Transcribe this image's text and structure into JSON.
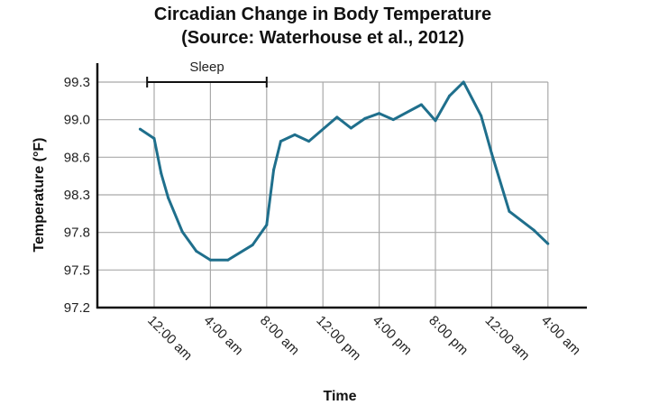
{
  "chart_data": {
    "type": "line",
    "title": "Circadian Change in Body Temperature",
    "subtitle": "(Source: Waterhouse et al., 2012)",
    "xlabel": "Time",
    "ylabel": "Temperature (°F)",
    "x_ticks": [
      "12:00 am",
      "4:00 am",
      "8:00 am",
      "12:00 pm",
      "4:00 pm",
      "8:00 pm",
      "12:00 am",
      "4:00 am"
    ],
    "y_ticks": [
      97.2,
      97.5,
      97.8,
      98.3,
      98.6,
      99.0,
      99.3
    ],
    "y_tick_labels": [
      "97.2",
      "97.5",
      "97.8",
      "98.3",
      "98.6",
      "99.0",
      "99.3"
    ],
    "grid": true,
    "line_color": "#1f6f8c",
    "annotation": {
      "label": "Sleep",
      "from": "11:30 pm",
      "to": "8:00 am"
    },
    "series": [
      {
        "x": [
          "11:00 pm",
          "12:00 am",
          "12:30 am",
          "1:00 am",
          "2:00 am",
          "3:00 am",
          "4:00 am",
          "5:15 am",
          "7:00 am",
          "8:00 am",
          "8:30 am",
          "9:00 am",
          "10:00 am",
          "11:00 am",
          "1:00 pm",
          "2:00 pm",
          "3:00 pm",
          "4:00 pm",
          "5:00 pm",
          "7:00 pm",
          "8:00 pm",
          "9:00 pm",
          "10:00 pm",
          "11:15 pm",
          "12:00 am",
          "1:15 am",
          "3:00 am",
          "4:00 am"
        ],
        "values": [
          98.9,
          98.8,
          98.47,
          98.26,
          97.81,
          97.65,
          97.58,
          97.58,
          97.7,
          97.9,
          98.5,
          98.77,
          98.84,
          98.77,
          99.02,
          98.91,
          99.01,
          99.05,
          99.0,
          99.12,
          98.99,
          99.19,
          99.3,
          99.03,
          98.64,
          98.08,
          97.83,
          97.71
        ]
      }
    ]
  }
}
